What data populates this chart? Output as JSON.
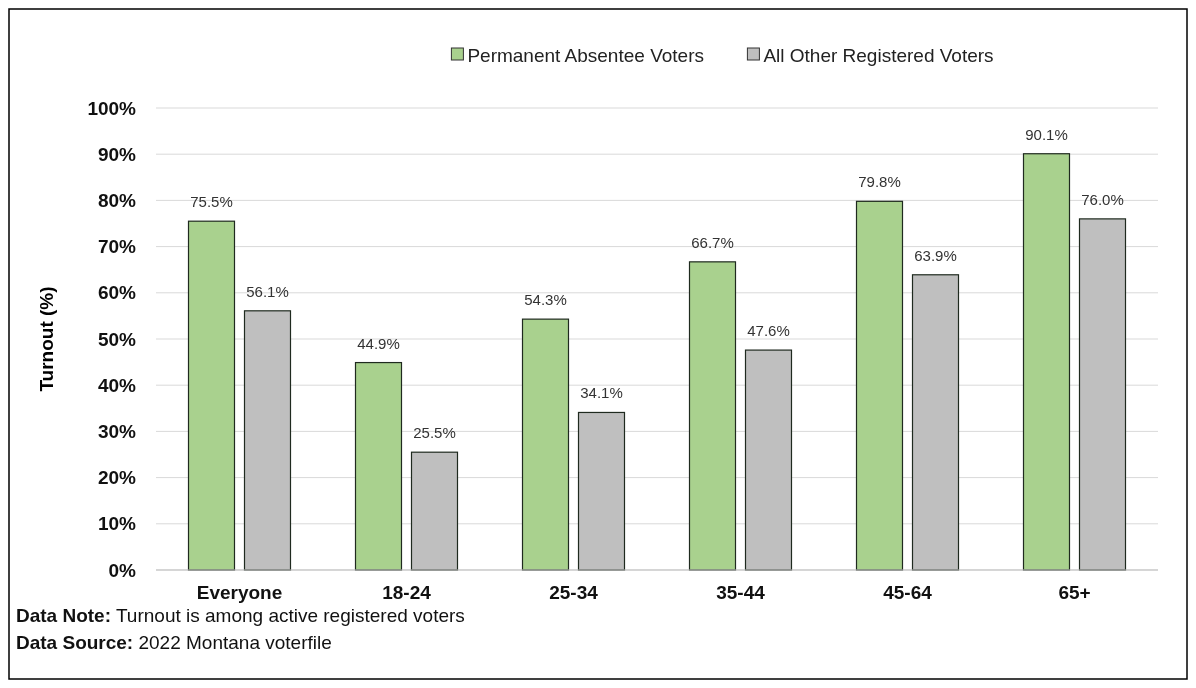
{
  "chart_data": {
    "type": "bar",
    "ylabel": "Turnout (%)",
    "categories": [
      "Everyone",
      "18-24",
      "25-34",
      "35-44",
      "45-64",
      "65+"
    ],
    "series": [
      {
        "name": "Permanent Absentee Voters",
        "color": "#a9d18e",
        "values": [
          75.5,
          44.9,
          54.3,
          66.7,
          79.8,
          90.1
        ],
        "value_labels": [
          "75.5%",
          "44.9%",
          "54.3%",
          "66.7%",
          "79.8%",
          "90.1%"
        ]
      },
      {
        "name": "All Other Registered Voters",
        "color": "#bfbfbf",
        "values": [
          56.1,
          25.5,
          34.1,
          47.6,
          63.9,
          76.0
        ],
        "value_labels": [
          "56.1%",
          "25.5%",
          "34.1%",
          "47.6%",
          "63.9%",
          "76.0%"
        ]
      }
    ],
    "ylim": [
      0,
      100
    ],
    "yticks": [
      {
        "value": 0,
        "label": "0%"
      },
      {
        "value": 10,
        "label": "10%"
      },
      {
        "value": 20,
        "label": "20%"
      },
      {
        "value": 30,
        "label": "30%"
      },
      {
        "value": 40,
        "label": "40%"
      },
      {
        "value": 50,
        "label": "50%"
      },
      {
        "value": 60,
        "label": "60%"
      },
      {
        "value": 70,
        "label": "70%"
      },
      {
        "value": 80,
        "label": "80%"
      },
      {
        "value": 90,
        "label": "90%"
      },
      {
        "value": 100,
        "label": "100%"
      }
    ],
    "grid": "y",
    "legend": "top",
    "annotations": [
      "Data Note: Turnout is among active registered voters",
      "Data Source: 2022 Montana voterfile"
    ]
  }
}
